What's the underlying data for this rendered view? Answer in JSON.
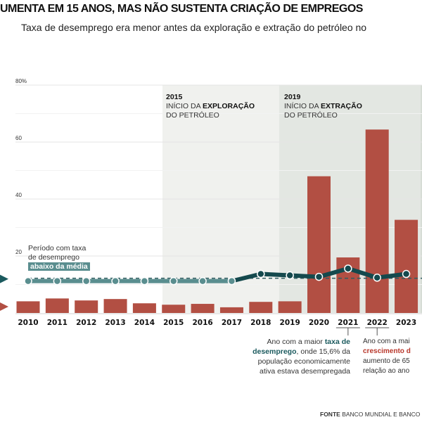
{
  "title": "UMENTA EM 15 ANOS, MAS NÃO SUSTENTA CRIAÇÃO DE EMPREGOS",
  "subtitle": "Taxa de desemprego era menor antes da exploração e extração do petróleo no",
  "periods": [
    {
      "year": "2015",
      "line1": "INÍCIO DA ",
      "bold": "EXPLORAÇÃO",
      "line2": "DO PETRÓLEO",
      "color": "#f0f1ee"
    },
    {
      "year": "2019",
      "line1": "INÍCIO DA ",
      "bold": "EXTRAÇÃO",
      "line2": "DO PETRÓLEO",
      "color": "#e3e7e2"
    }
  ],
  "legend_note": {
    "text1": "Período com taxa",
    "text2": "de desemprego",
    "tag": "abaixo da média"
  },
  "annotation_2021": {
    "a": "Ano com a maior ",
    "b": "taxa de desemprego",
    "c": ", onde 15,6% da população economicamente ativa estava desempregada"
  },
  "annotation_2022": {
    "a": "Ano com a mai",
    "b": "crescimento d",
    "c": "aumento de 65",
    "d": "relação ao ano"
  },
  "source": {
    "label": "FONTE",
    "text": "BANCO MUNDIAL E BANCO C"
  },
  "chart_data": {
    "type": "bar+line",
    "categories": [
      "2010",
      "2011",
      "2012",
      "2013",
      "2014",
      "2015",
      "2016",
      "2017",
      "2018",
      "2019",
      "2020",
      "2021",
      "2022",
      "2023"
    ],
    "yticks": [
      "80%",
      "60",
      "40",
      "20"
    ],
    "ylim": [
      0,
      80
    ],
    "grid": true,
    "series": [
      {
        "type": "bar",
        "color": "#b24f43",
        "values": [
          4.1,
          5.1,
          4.4,
          4.9,
          3.4,
          2.9,
          3.2,
          2.0,
          3.9,
          4.1,
          48,
          19.5,
          64.4,
          32.7
        ]
      },
      {
        "type": "line",
        "color": "#14494d",
        "values": [
          11.2,
          11.2,
          11.2,
          11.2,
          11.2,
          11.2,
          11.2,
          11.2,
          13.7,
          13.2,
          12.7,
          15.6,
          12.4,
          13.7
        ]
      }
    ],
    "average_line": 12.2
  }
}
